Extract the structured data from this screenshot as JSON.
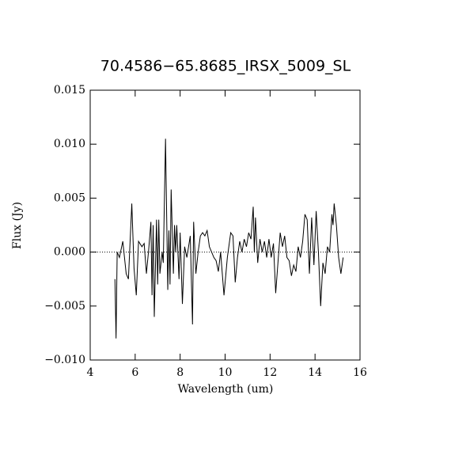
{
  "chart_data": {
    "type": "line",
    "title": "70.4586−65.8685_IRSX_5009_SL",
    "x_label": "Wavelength (um)",
    "y_label": "Flux (Jy)",
    "xlim": [
      4,
      16
    ],
    "ylim": [
      -0.01,
      0.015
    ],
    "xticks": [
      4,
      6,
      8,
      10,
      12,
      14,
      16
    ],
    "yticks": [
      {
        "value": 0.015,
        "label": "0.015"
      },
      {
        "value": 0.01,
        "label": "0.010"
      },
      {
        "value": 0.005,
        "label": "0.005"
      },
      {
        "value": 0.0,
        "label": "0.000"
      },
      {
        "value": -0.005,
        "label": "−0.005"
      },
      {
        "value": -0.01,
        "label": "−0.010"
      }
    ],
    "reference_line": 0,
    "color": "#000000",
    "x": [
      5.1,
      5.15,
      5.2,
      5.3,
      5.45,
      5.6,
      5.7,
      5.85,
      5.95,
      6.05,
      6.15,
      6.3,
      6.4,
      6.5,
      6.6,
      6.7,
      6.75,
      6.8,
      6.85,
      6.95,
      7.0,
      7.05,
      7.1,
      7.2,
      7.25,
      7.35,
      7.45,
      7.5,
      7.55,
      7.6,
      7.7,
      7.75,
      7.8,
      7.85,
      7.95,
      8.0,
      8.1,
      8.2,
      8.3,
      8.45,
      8.55,
      8.6,
      8.7,
      8.8,
      8.9,
      9.0,
      9.1,
      9.2,
      9.3,
      9.4,
      9.5,
      9.6,
      9.7,
      9.8,
      9.95,
      10.1,
      10.25,
      10.35,
      10.45,
      10.55,
      10.65,
      10.75,
      10.85,
      10.95,
      11.05,
      11.15,
      11.25,
      11.3,
      11.35,
      11.45,
      11.55,
      11.65,
      11.75,
      11.85,
      11.95,
      12.05,
      12.15,
      12.25,
      12.35,
      12.45,
      12.55,
      12.65,
      12.75,
      12.85,
      12.95,
      13.05,
      13.15,
      13.25,
      13.35,
      13.45,
      13.55,
      13.65,
      13.75,
      13.85,
      13.95,
      14.05,
      14.15,
      14.25,
      14.35,
      14.45,
      14.55,
      14.65,
      14.75,
      14.8,
      14.85,
      14.95,
      15.05,
      15.15,
      15.25
    ],
    "values": [
      -0.0025,
      -0.008,
      0.0,
      -0.0005,
      0.001,
      -0.002,
      -0.0025,
      0.0045,
      -0.0015,
      -0.004,
      0.001,
      0.0005,
      0.0008,
      -0.002,
      0.0002,
      0.0028,
      -0.004,
      0.0025,
      -0.006,
      0.003,
      -0.003,
      0.003,
      -0.002,
      0.0,
      -0.001,
      0.0105,
      -0.0035,
      0.002,
      -0.003,
      0.0058,
      -0.002,
      0.0025,
      0.0,
      0.0025,
      -0.0025,
      0.0018,
      -0.0048,
      0.0005,
      -0.0005,
      0.0015,
      -0.0067,
      0.0028,
      -0.002,
      0.0,
      0.0015,
      0.0018,
      0.0015,
      0.002,
      0.0005,
      0.0,
      -0.0005,
      -0.0008,
      -0.0018,
      0.0,
      -0.004,
      -0.0005,
      0.0018,
      0.0015,
      -0.0028,
      -0.0005,
      0.001,
      0.0,
      0.0012,
      0.0005,
      0.0018,
      0.0012,
      0.0042,
      0.0,
      0.0032,
      -0.001,
      0.0012,
      0.0,
      0.001,
      -0.0005,
      0.0012,
      -0.0005,
      0.0008,
      -0.0038,
      -0.001,
      0.0018,
      0.0005,
      0.0015,
      -0.0005,
      -0.0008,
      -0.0022,
      -0.0012,
      -0.0018,
      0.0005,
      -0.0005,
      0.001,
      0.0035,
      0.003,
      -0.002,
      0.0032,
      -0.0012,
      0.0038,
      0.0,
      -0.005,
      -0.001,
      -0.002,
      0.0005,
      0.0,
      0.0035,
      0.0025,
      0.0045,
      0.0025,
      -0.0005,
      -0.002,
      -0.0005
    ]
  }
}
